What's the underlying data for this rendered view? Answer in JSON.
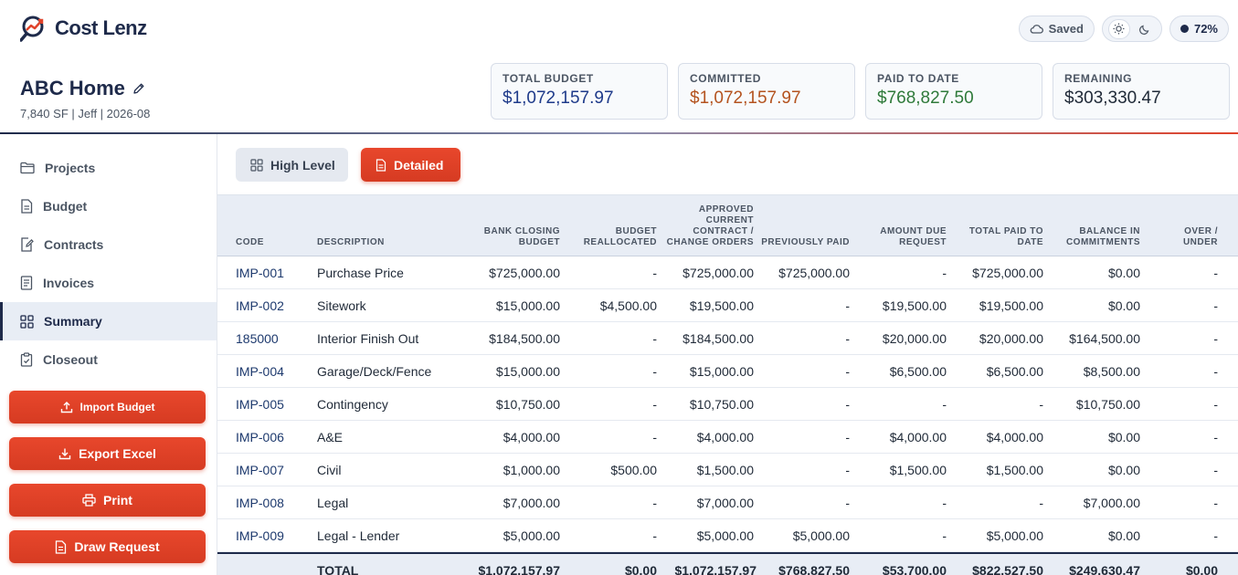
{
  "app": {
    "name": "Cost Lenz"
  },
  "status": {
    "saved_label": "Saved",
    "progress_label": "72%",
    "progress": 72
  },
  "project": {
    "title": "ABC Home",
    "meta": "7,840 SF | Jeff | 2026-08"
  },
  "cards": [
    {
      "label": "TOTAL BUDGET",
      "value": "$1,072,157.97",
      "color": "#1e3a8a"
    },
    {
      "label": "COMMITTED",
      "value": "$1,072,157.97",
      "color": "#b4531f"
    },
    {
      "label": "PAID TO DATE",
      "value": "$768,827.50",
      "color": "#2f7a3a"
    },
    {
      "label": "REMAINING",
      "value": "$303,330.47",
      "color": "#1f2937"
    }
  ],
  "sidebar": {
    "items": [
      {
        "label": "Projects",
        "icon": "folder-icon"
      },
      {
        "label": "Budget",
        "icon": "document-icon"
      },
      {
        "label": "Contracts",
        "icon": "edit-document-icon"
      },
      {
        "label": "Invoices",
        "icon": "invoice-icon"
      },
      {
        "label": "Summary",
        "icon": "grid-icon",
        "active": true
      },
      {
        "label": "Closeout",
        "icon": "clipboard-check-icon"
      }
    ],
    "buttons": {
      "import": "Import Budget",
      "export": "Export Excel",
      "print": "Print",
      "draw": "Draw Request"
    }
  },
  "view": {
    "high_level": "High Level",
    "detailed": "Detailed"
  },
  "table": {
    "headers": {
      "code": "CODE",
      "description": "DESCRIPTION",
      "bank_closing_budget": "BANK CLOSING\nBUDGET",
      "budget_reallocated": "BUDGET\nREALLOCATED",
      "approved_current": "APPROVED\nCURRENT\nCONTRACT /\nCHANGE ORDERS",
      "previously_paid": "PREVIOUSLY PAID",
      "amount_due": "AMOUNT DUE\nREQUEST",
      "total_paid": "TOTAL PAID TO\nDATE",
      "balance": "BALANCE IN\nCOMMITMENTS",
      "over_under": "OVER /\nUNDER"
    },
    "rows": [
      {
        "code": "IMP-001",
        "description": "Purchase Price",
        "bank": "$725,000.00",
        "realloc": "-",
        "approved": "$725,000.00",
        "prev": "$725,000.00",
        "due": "-",
        "paid": "$725,000.00",
        "balance": "$0.00",
        "over": "-"
      },
      {
        "code": "IMP-002",
        "description": "Sitework",
        "bank": "$15,000.00",
        "realloc": "$4,500.00",
        "approved": "$19,500.00",
        "prev": "-",
        "due": "$19,500.00",
        "paid": "$19,500.00",
        "balance": "$0.00",
        "over": "-"
      },
      {
        "code": "185000",
        "description": "Interior Finish Out",
        "bank": "$184,500.00",
        "realloc": "-",
        "approved": "$184,500.00",
        "prev": "-",
        "due": "$20,000.00",
        "paid": "$20,000.00",
        "balance": "$164,500.00",
        "over": "-"
      },
      {
        "code": "IMP-004",
        "description": "Garage/Deck/Fence",
        "bank": "$15,000.00",
        "realloc": "-",
        "approved": "$15,000.00",
        "prev": "-",
        "due": "$6,500.00",
        "paid": "$6,500.00",
        "balance": "$8,500.00",
        "over": "-"
      },
      {
        "code": "IMP-005",
        "description": "Contingency",
        "bank": "$10,750.00",
        "realloc": "-",
        "approved": "$10,750.00",
        "prev": "-",
        "due": "-",
        "paid": "-",
        "balance": "$10,750.00",
        "over": "-"
      },
      {
        "code": "IMP-006",
        "description": "A&E",
        "bank": "$4,000.00",
        "realloc": "-",
        "approved": "$4,000.00",
        "prev": "-",
        "due": "$4,000.00",
        "paid": "$4,000.00",
        "balance": "$0.00",
        "over": "-"
      },
      {
        "code": "IMP-007",
        "description": "Civil",
        "bank": "$1,000.00",
        "realloc": "$500.00",
        "approved": "$1,500.00",
        "prev": "-",
        "due": "$1,500.00",
        "paid": "$1,500.00",
        "balance": "$0.00",
        "over": "-"
      },
      {
        "code": "IMP-008",
        "description": "Legal",
        "bank": "$7,000.00",
        "realloc": "-",
        "approved": "$7,000.00",
        "prev": "-",
        "due": "-",
        "paid": "-",
        "balance": "$7,000.00",
        "over": "-"
      },
      {
        "code": "IMP-009",
        "description": "Legal - Lender",
        "bank": "$5,000.00",
        "realloc": "-",
        "approved": "$5,000.00",
        "prev": "$5,000.00",
        "due": "-",
        "paid": "$5,000.00",
        "balance": "$0.00",
        "over": "-"
      }
    ],
    "total": {
      "label": "TOTAL",
      "bank": "$1,072,157.97",
      "realloc": "$0.00",
      "approved": "$1,072,157.97",
      "prev": "$768,827.50",
      "due": "$53,700.00",
      "paid": "$822,527.50",
      "balance": "$249,630.47",
      "over": "$0.00"
    }
  }
}
